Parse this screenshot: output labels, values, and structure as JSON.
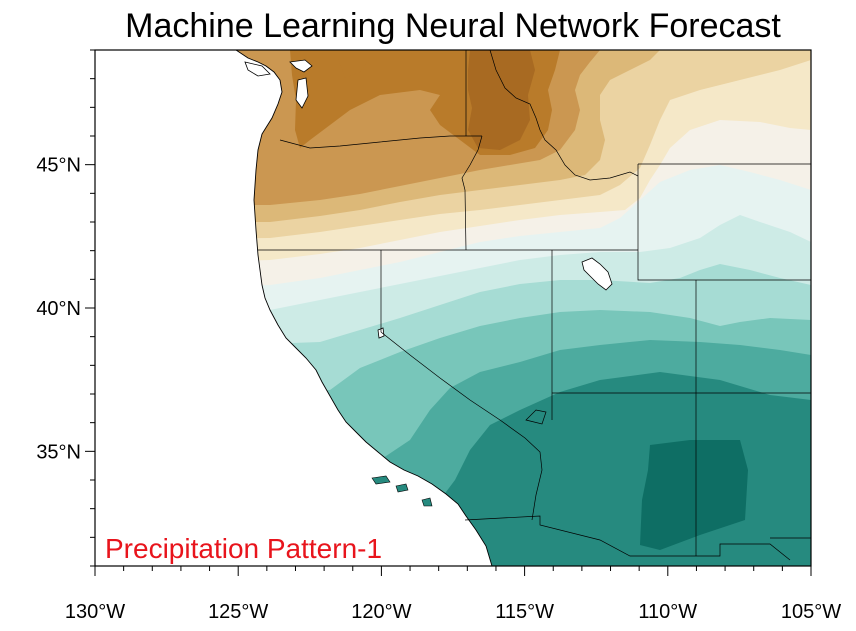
{
  "title": "Machine Learning Neural Network Forecast",
  "annotation": "Precipitation Pattern-1",
  "annotation_color": "#e8141c",
  "map": {
    "projection": "lat-lon",
    "lon_range": [
      -130,
      -105
    ],
    "lat_range": [
      31,
      49
    ],
    "x_ticks": [
      {
        "lon": -130,
        "label": "130°W"
      },
      {
        "lon": -125,
        "label": "125°W"
      },
      {
        "lon": -120,
        "label": "120°W"
      },
      {
        "lon": -115,
        "label": "115°W"
      },
      {
        "lon": -110,
        "label": "110°W"
      },
      {
        "lon": -105,
        "label": "105°W"
      }
    ],
    "y_ticks": [
      {
        "lat": 45,
        "label": "45°N"
      },
      {
        "lat": 40,
        "label": "40°N"
      },
      {
        "lat": 35,
        "label": "35°N"
      }
    ],
    "colormap": "brown-to-teal diverging",
    "fill_colors": [
      "#a86a22",
      "#b97b2a",
      "#cb9751",
      "#dcb878",
      "#ebd3a2",
      "#f5e8c8",
      "#f5f1e8",
      "#e6f3f1",
      "#cdebe6",
      "#a6dcd4",
      "#78c6ba",
      "#4dab9f",
      "#268a7f",
      "#0e6e64"
    ],
    "background": "#ffffff"
  }
}
